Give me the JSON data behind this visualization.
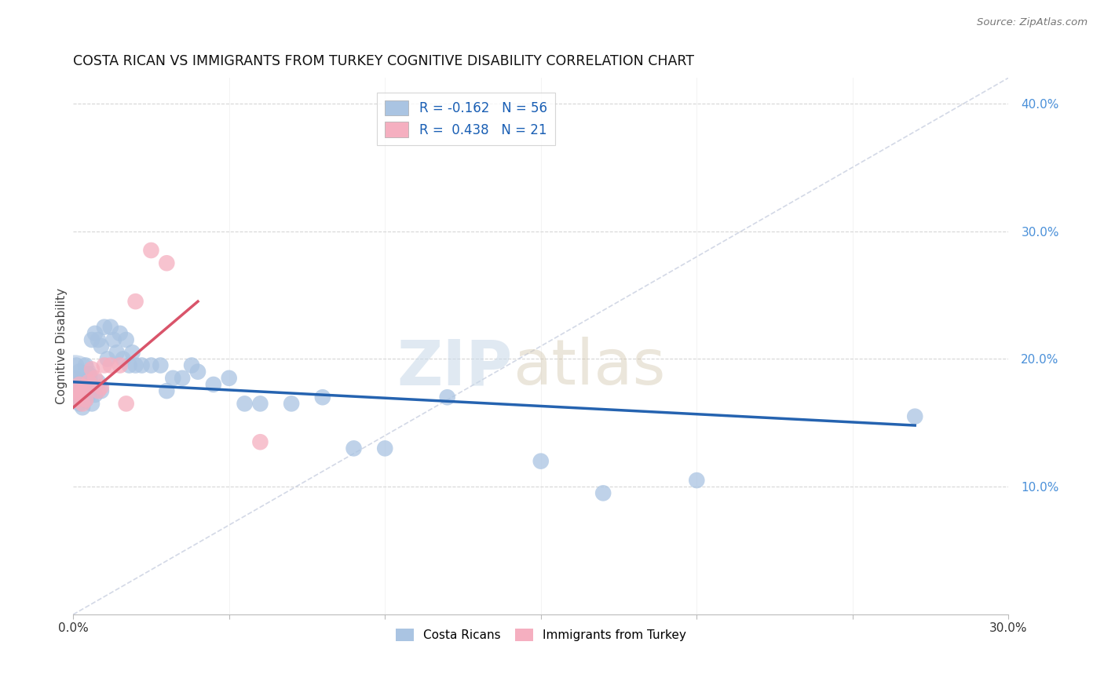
{
  "title": "COSTA RICAN VS IMMIGRANTS FROM TURKEY COGNITIVE DISABILITY CORRELATION CHART",
  "source": "Source: ZipAtlas.com",
  "ylabel": "Cognitive Disability",
  "xlim": [
    0.0,
    0.3
  ],
  "ylim": [
    0.0,
    0.42
  ],
  "yticks": [
    0.1,
    0.2,
    0.3,
    0.4
  ],
  "ytick_labels": [
    "10.0%",
    "20.0%",
    "30.0%",
    "40.0%"
  ],
  "xticks": [
    0.0,
    0.05,
    0.1,
    0.15,
    0.2,
    0.25,
    0.3
  ],
  "xtick_labels": [
    "0.0%",
    "",
    "",
    "",
    "",
    "",
    "30.0%"
  ],
  "legend_blue_r": "-0.162",
  "legend_blue_n": "56",
  "legend_pink_r": "0.438",
  "legend_pink_n": "21",
  "blue_scatter_color": "#aac4e2",
  "pink_scatter_color": "#f5afc0",
  "blue_line_color": "#2563b0",
  "pink_line_color": "#d9546a",
  "dashed_line_color": "#c8cfe0",
  "blue_line_x": [
    0.0,
    0.27
  ],
  "blue_line_y": [
    0.182,
    0.148
  ],
  "pink_line_x": [
    0.0,
    0.04
  ],
  "pink_line_y": [
    0.162,
    0.245
  ],
  "dashed_line_x": [
    0.0,
    0.3
  ],
  "dashed_line_y": [
    0.0,
    0.42
  ],
  "costa_ricans_x": [
    0.001,
    0.001,
    0.001,
    0.002,
    0.002,
    0.002,
    0.002,
    0.003,
    0.003,
    0.003,
    0.004,
    0.004,
    0.004,
    0.005,
    0.005,
    0.005,
    0.006,
    0.006,
    0.007,
    0.007,
    0.008,
    0.008,
    0.009,
    0.009,
    0.01,
    0.011,
    0.012,
    0.013,
    0.014,
    0.015,
    0.016,
    0.017,
    0.018,
    0.019,
    0.02,
    0.022,
    0.025,
    0.028,
    0.03,
    0.032,
    0.035,
    0.038,
    0.04,
    0.045,
    0.05,
    0.055,
    0.06,
    0.07,
    0.08,
    0.09,
    0.1,
    0.12,
    0.15,
    0.17,
    0.2,
    0.27
  ],
  "costa_ricans_y": [
    0.185,
    0.175,
    0.195,
    0.18,
    0.19,
    0.17,
    0.165,
    0.185,
    0.178,
    0.162,
    0.195,
    0.175,
    0.168,
    0.188,
    0.18,
    0.172,
    0.215,
    0.165,
    0.22,
    0.172,
    0.215,
    0.182,
    0.21,
    0.175,
    0.225,
    0.2,
    0.225,
    0.215,
    0.205,
    0.22,
    0.2,
    0.215,
    0.195,
    0.205,
    0.195,
    0.195,
    0.195,
    0.195,
    0.175,
    0.185,
    0.185,
    0.195,
    0.19,
    0.18,
    0.185,
    0.165,
    0.165,
    0.165,
    0.17,
    0.13,
    0.13,
    0.17,
    0.12,
    0.095,
    0.105,
    0.155
  ],
  "turkey_x": [
    0.001,
    0.001,
    0.002,
    0.002,
    0.003,
    0.003,
    0.004,
    0.004,
    0.005,
    0.006,
    0.007,
    0.008,
    0.009,
    0.01,
    0.012,
    0.015,
    0.017,
    0.02,
    0.025,
    0.03,
    0.06
  ],
  "turkey_y": [
    0.175,
    0.168,
    0.18,
    0.172,
    0.165,
    0.175,
    0.178,
    0.168,
    0.182,
    0.192,
    0.185,
    0.175,
    0.178,
    0.195,
    0.195,
    0.195,
    0.165,
    0.245,
    0.285,
    0.275,
    0.135
  ],
  "watermark_zip": "ZIP",
  "watermark_atlas": "atlas",
  "background_color": "#ffffff"
}
